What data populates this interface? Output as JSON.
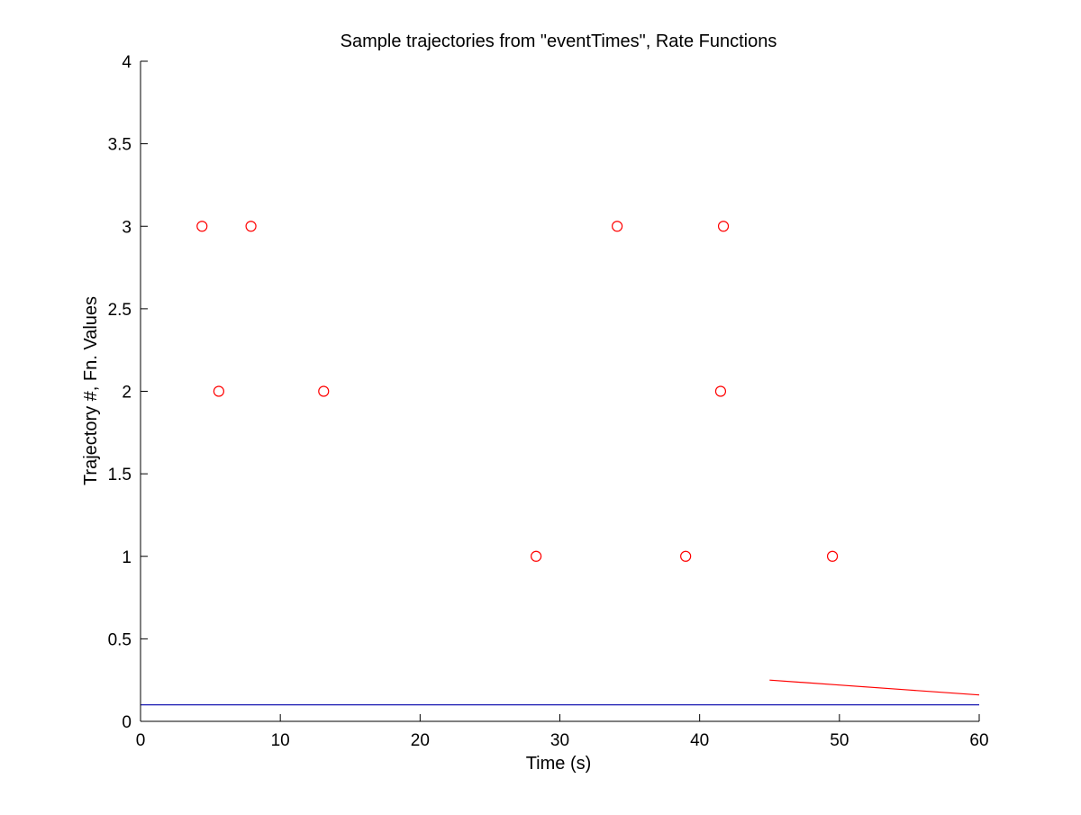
{
  "chart_data": {
    "type": "scatter",
    "title": "Sample trajectories from \"eventTimes\", Rate Functions",
    "xlabel": "Time (s)",
    "ylabel": "Trajectory #, Fn. Values",
    "xlim": [
      0,
      60
    ],
    "ylim": [
      0,
      4
    ],
    "xticks": [
      "0",
      "10",
      "20",
      "30",
      "40",
      "50",
      "60"
    ],
    "yticks": [
      "0",
      "0.5",
      "1",
      "1.5",
      "2",
      "2.5",
      "3",
      "3.5",
      "4"
    ],
    "grid": false,
    "series": [
      {
        "kind": "markers",
        "marker": "circle",
        "color": "#ff0000",
        "points": [
          {
            "x": 4.4,
            "y": 3
          },
          {
            "x": 7.9,
            "y": 3
          },
          {
            "x": 34.1,
            "y": 3
          },
          {
            "x": 41.7,
            "y": 3
          },
          {
            "x": 5.6,
            "y": 2
          },
          {
            "x": 13.1,
            "y": 2
          },
          {
            "x": 41.5,
            "y": 2
          },
          {
            "x": 28.3,
            "y": 1
          },
          {
            "x": 39.0,
            "y": 1
          },
          {
            "x": 49.5,
            "y": 1
          }
        ]
      },
      {
        "kind": "line",
        "color": "#0000aa",
        "points": [
          {
            "x": 0,
            "y": 0.1
          },
          {
            "x": 60,
            "y": 0.1
          }
        ]
      },
      {
        "kind": "line",
        "color": "#ff0000",
        "points": [
          {
            "x": 45,
            "y": 0.25
          },
          {
            "x": 50,
            "y": 0.22
          },
          {
            "x": 55,
            "y": 0.19
          },
          {
            "x": 60,
            "y": 0.16
          }
        ]
      }
    ]
  }
}
